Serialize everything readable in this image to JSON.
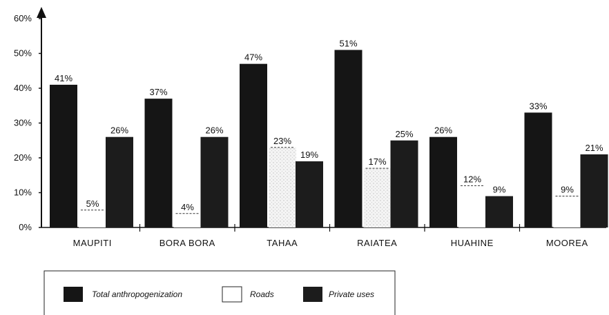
{
  "chart_data": {
    "type": "bar",
    "categories": [
      "MAUPITI",
      "BORA BORA",
      "TAHAA",
      "RAIATEA",
      "HUAHINE",
      "MOOREA"
    ],
    "series": [
      {
        "name": "Total anthropogenization",
        "values": [
          41,
          37,
          47,
          51,
          26,
          33
        ],
        "labels": [
          "41%",
          "37%",
          "47%",
          "51%",
          "26%",
          "33%"
        ],
        "color": "#151515"
      },
      {
        "name": "Roads",
        "values": [
          5,
          4,
          23,
          17,
          12,
          9
        ],
        "labels": [
          "5%",
          "4%",
          "23%",
          "17%",
          "12%",
          "9%"
        ],
        "color": "#ffffff"
      },
      {
        "name": "Private uses",
        "values": [
          26,
          26,
          19,
          25,
          9,
          21
        ],
        "labels": [
          "26%",
          "26%",
          "19%",
          "25%",
          "9%",
          "21%"
        ],
        "color": "#1c1c1c"
      }
    ],
    "yticks": [
      "0%",
      "10%",
      "20%",
      "30%",
      "40%",
      "50%",
      "60%"
    ],
    "ylim": [
      0,
      60
    ],
    "xlabel": "",
    "ylabel": "",
    "title": "",
    "grid": false,
    "legend_position": "bottom-left"
  }
}
